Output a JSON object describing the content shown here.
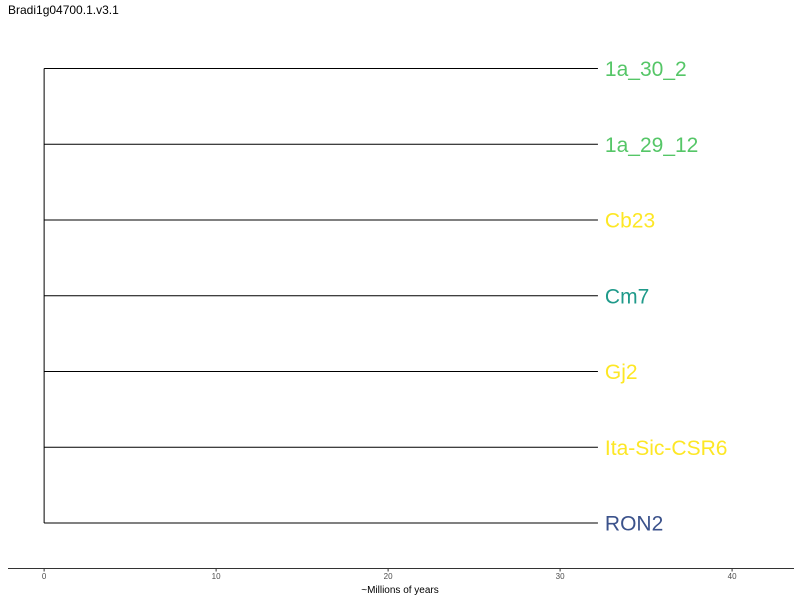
{
  "title": "Bradi1g04700.1.v3.1",
  "axis": {
    "label": "~Millions of years",
    "ticks": [
      0,
      10,
      20,
      30,
      40
    ],
    "range": [
      -2.1,
      43.6
    ]
  },
  "tree": {
    "root_age": 0,
    "leaves": [
      {
        "name": "1a_30_2",
        "branch_length": 32.2,
        "color": "#55c667"
      },
      {
        "name": "1a_29_12",
        "branch_length": 32.2,
        "color": "#55c667"
      },
      {
        "name": "Cb23",
        "branch_length": 32.2,
        "color": "#fde725"
      },
      {
        "name": "Cm7",
        "branch_length": 32.2,
        "color": "#1f9a8a"
      },
      {
        "name": "Gj2",
        "branch_length": 32.2,
        "color": "#fde725"
      },
      {
        "name": "Ita-Sic-CSR6",
        "branch_length": 32.2,
        "color": "#fde725"
      },
      {
        "name": "RON2",
        "branch_length": 32.2,
        "color": "#3b528b"
      }
    ]
  }
}
